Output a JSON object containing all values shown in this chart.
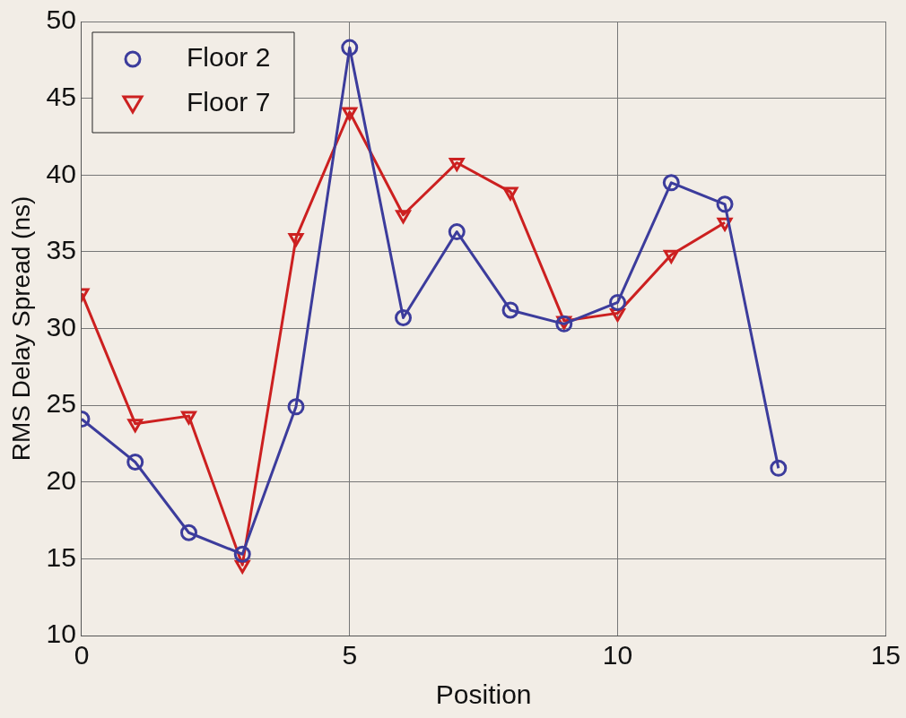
{
  "chart_data": {
    "type": "line",
    "xlabel": "Position",
    "ylabel": "RMS Delay Spread (ns)",
    "x": [
      0,
      1,
      2,
      3,
      4,
      5,
      6,
      7,
      8,
      9,
      10,
      11,
      12,
      13
    ],
    "series": [
      {
        "name": "Floor 2",
        "color": "#3c3c9c",
        "marker": "circle",
        "values": [
          24.1,
          21.3,
          16.7,
          15.3,
          24.9,
          48.3,
          30.7,
          36.3,
          31.2,
          30.3,
          31.7,
          39.5,
          38.1,
          20.9
        ]
      },
      {
        "name": "Floor 7",
        "color": "#cc2020",
        "marker": "triangle",
        "values": [
          32.3,
          23.8,
          24.3,
          14.6,
          35.9,
          44.1,
          37.4,
          40.8,
          38.9,
          30.5,
          31.0,
          34.8,
          36.9,
          null
        ]
      }
    ],
    "xlim": [
      0,
      15
    ],
    "xticks": [
      0,
      5,
      10,
      15
    ],
    "ylim": [
      10,
      50
    ],
    "yticks": [
      10,
      15,
      20,
      25,
      30,
      35,
      40,
      45,
      50
    ],
    "grid": true,
    "legend": "top left"
  }
}
